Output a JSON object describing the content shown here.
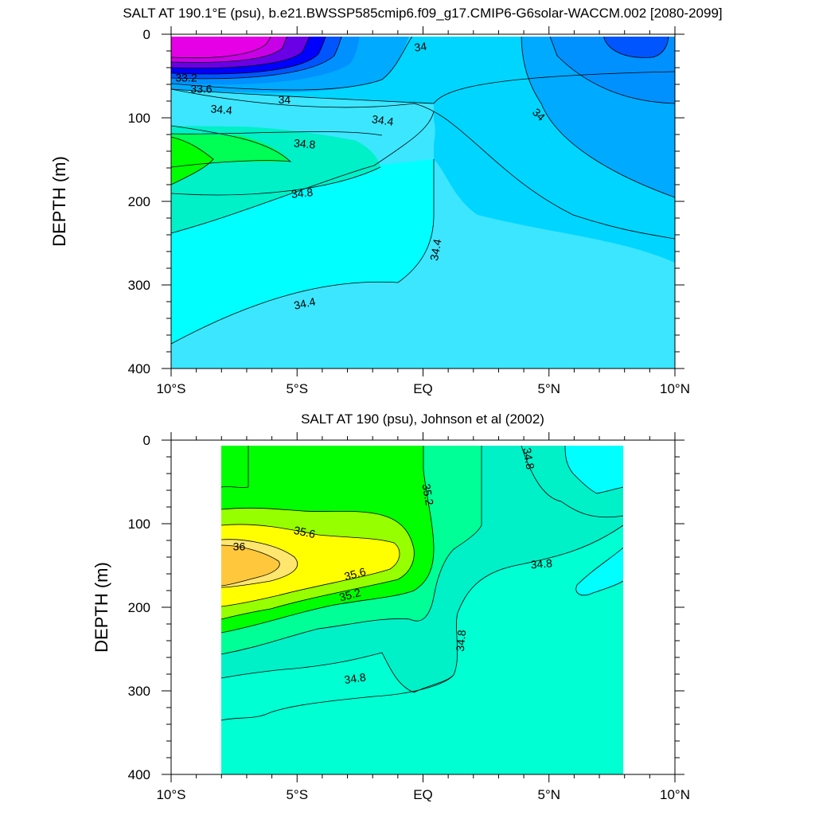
{
  "chart_data": [
    {
      "type": "contour",
      "title": "SALT AT 190.1°E (psu), b.e21.BWSSP585cmip6.f09_g17.CMIP6-G6solar-WACCM.002 [2080-2099]",
      "xlabel": "",
      "ylabel": "DEPTH (m)",
      "xlim": [
        -10,
        10
      ],
      "ylim": [
        400,
        0
      ],
      "x_ticks": [
        {
          "value": -10,
          "label": "10°S"
        },
        {
          "value": -5,
          "label": "5°S"
        },
        {
          "value": 0,
          "label": "EQ"
        },
        {
          "value": 5,
          "label": "5°N"
        },
        {
          "value": 10,
          "label": "10°N"
        }
      ],
      "y_ticks": [
        {
          "value": 0,
          "label": "0"
        },
        {
          "value": 100,
          "label": "100"
        },
        {
          "value": 200,
          "label": "200"
        },
        {
          "value": 300,
          "label": "300"
        },
        {
          "value": 400,
          "label": "400"
        }
      ],
      "data_lon_range": [
        -10,
        10
      ],
      "contour_interval": 0.2,
      "contour_labels": [
        {
          "text": "33.2",
          "lon": -9.4,
          "depth": 52,
          "angle": 0
        },
        {
          "text": "33.6",
          "lon": -8.8,
          "depth": 65,
          "angle": 0
        },
        {
          "text": "34",
          "lon": -5.5,
          "depth": 78,
          "angle": 0
        },
        {
          "text": "34",
          "lon": -0.1,
          "depth": 15,
          "angle": -8
        },
        {
          "text": "34",
          "lon": 4.6,
          "depth": 96,
          "angle": 45
        },
        {
          "text": "34.4",
          "lon": -8.0,
          "depth": 90,
          "angle": 5
        },
        {
          "text": "34.4",
          "lon": -1.6,
          "depth": 103,
          "angle": 8
        },
        {
          "text": "34.8",
          "lon": -4.7,
          "depth": 131,
          "angle": 5
        },
        {
          "text": "34.8",
          "lon": -4.8,
          "depth": 190,
          "angle": -6
        },
        {
          "text": "34.4",
          "lon": 0.5,
          "depth": 258,
          "angle": -80
        },
        {
          "text": "34.4",
          "lon": -4.7,
          "depth": 322,
          "angle": -12
        }
      ]
    },
    {
      "type": "contour",
      "title": "SALT AT 190 (psu), Johnson et al (2002)",
      "xlabel": "",
      "ylabel": "DEPTH (m)",
      "xlim": [
        -10,
        10
      ],
      "ylim": [
        400,
        0
      ],
      "x_ticks": [
        {
          "value": -10,
          "label": "10°S"
        },
        {
          "value": -5,
          "label": "5°S"
        },
        {
          "value": 0,
          "label": "EQ"
        },
        {
          "value": 5,
          "label": "5°N"
        },
        {
          "value": 10,
          "label": "10°N"
        }
      ],
      "y_ticks": [
        {
          "value": 0,
          "label": "0"
        },
        {
          "value": 100,
          "label": "100"
        },
        {
          "value": 200,
          "label": "200"
        },
        {
          "value": 300,
          "label": "300"
        },
        {
          "value": 400,
          "label": "400"
        }
      ],
      "data_lon_range": [
        -8,
        8
      ],
      "contour_interval": 0.2,
      "contour_labels": [
        {
          "text": "36",
          "lon": -7.3,
          "depth": 127,
          "angle": 0
        },
        {
          "text": "35.6",
          "lon": -4.7,
          "depth": 110,
          "angle": 12
        },
        {
          "text": "35.6",
          "lon": -2.7,
          "depth": 160,
          "angle": -15
        },
        {
          "text": "35.2",
          "lon": 0.2,
          "depth": 65,
          "angle": 80
        },
        {
          "text": "35.2",
          "lon": -2.9,
          "depth": 185,
          "angle": -15
        },
        {
          "text": "34.8",
          "lon": 4.2,
          "depth": 22,
          "angle": 80
        },
        {
          "text": "34.8",
          "lon": 4.7,
          "depth": 148,
          "angle": -5
        },
        {
          "text": "34.8",
          "lon": 1.5,
          "depth": 240,
          "angle": -85
        },
        {
          "text": "34.8",
          "lon": -2.7,
          "depth": 285,
          "angle": -8
        }
      ]
    }
  ]
}
